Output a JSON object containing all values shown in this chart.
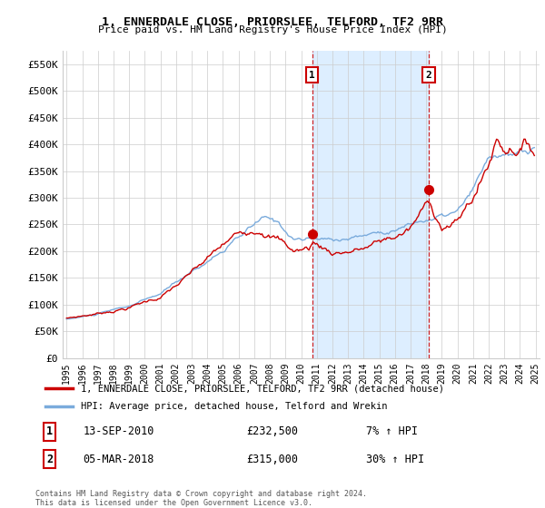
{
  "title": "1, ENNERDALE CLOSE, PRIORSLEE, TELFORD, TF2 9RR",
  "subtitle": "Price paid vs. HM Land Registry's House Price Index (HPI)",
  "ylim": [
    0,
    575000
  ],
  "yticks": [
    0,
    50000,
    100000,
    150000,
    200000,
    250000,
    300000,
    350000,
    400000,
    450000,
    500000,
    550000
  ],
  "ytick_labels": [
    "£0",
    "£50K",
    "£100K",
    "£150K",
    "£200K",
    "£250K",
    "£300K",
    "£350K",
    "£400K",
    "£450K",
    "£500K",
    "£550K"
  ],
  "sale1_date": 2010.71,
  "sale1_price": 232500,
  "sale1_label": "1",
  "sale1_text": "13-SEP-2010",
  "sale1_amount": "£232,500",
  "sale1_hpi": "7% ↑ HPI",
  "sale2_date": 2018.17,
  "sale2_price": 315000,
  "sale2_label": "2",
  "sale2_text": "05-MAR-2018",
  "sale2_amount": "£315,000",
  "sale2_hpi": "30% ↑ HPI",
  "line_color_red": "#cc0000",
  "line_color_blue": "#7aabdc",
  "fill_color_between": "#ddeeff",
  "grid_color": "#cccccc",
  "bg_color": "#ffffff",
  "legend_label_red": "1, ENNERDALE CLOSE, PRIORSLEE, TELFORD, TF2 9RR (detached house)",
  "legend_label_blue": "HPI: Average price, detached house, Telford and Wrekin",
  "footer": "Contains HM Land Registry data © Crown copyright and database right 2024.\nThis data is licensed under the Open Government Licence v3.0."
}
